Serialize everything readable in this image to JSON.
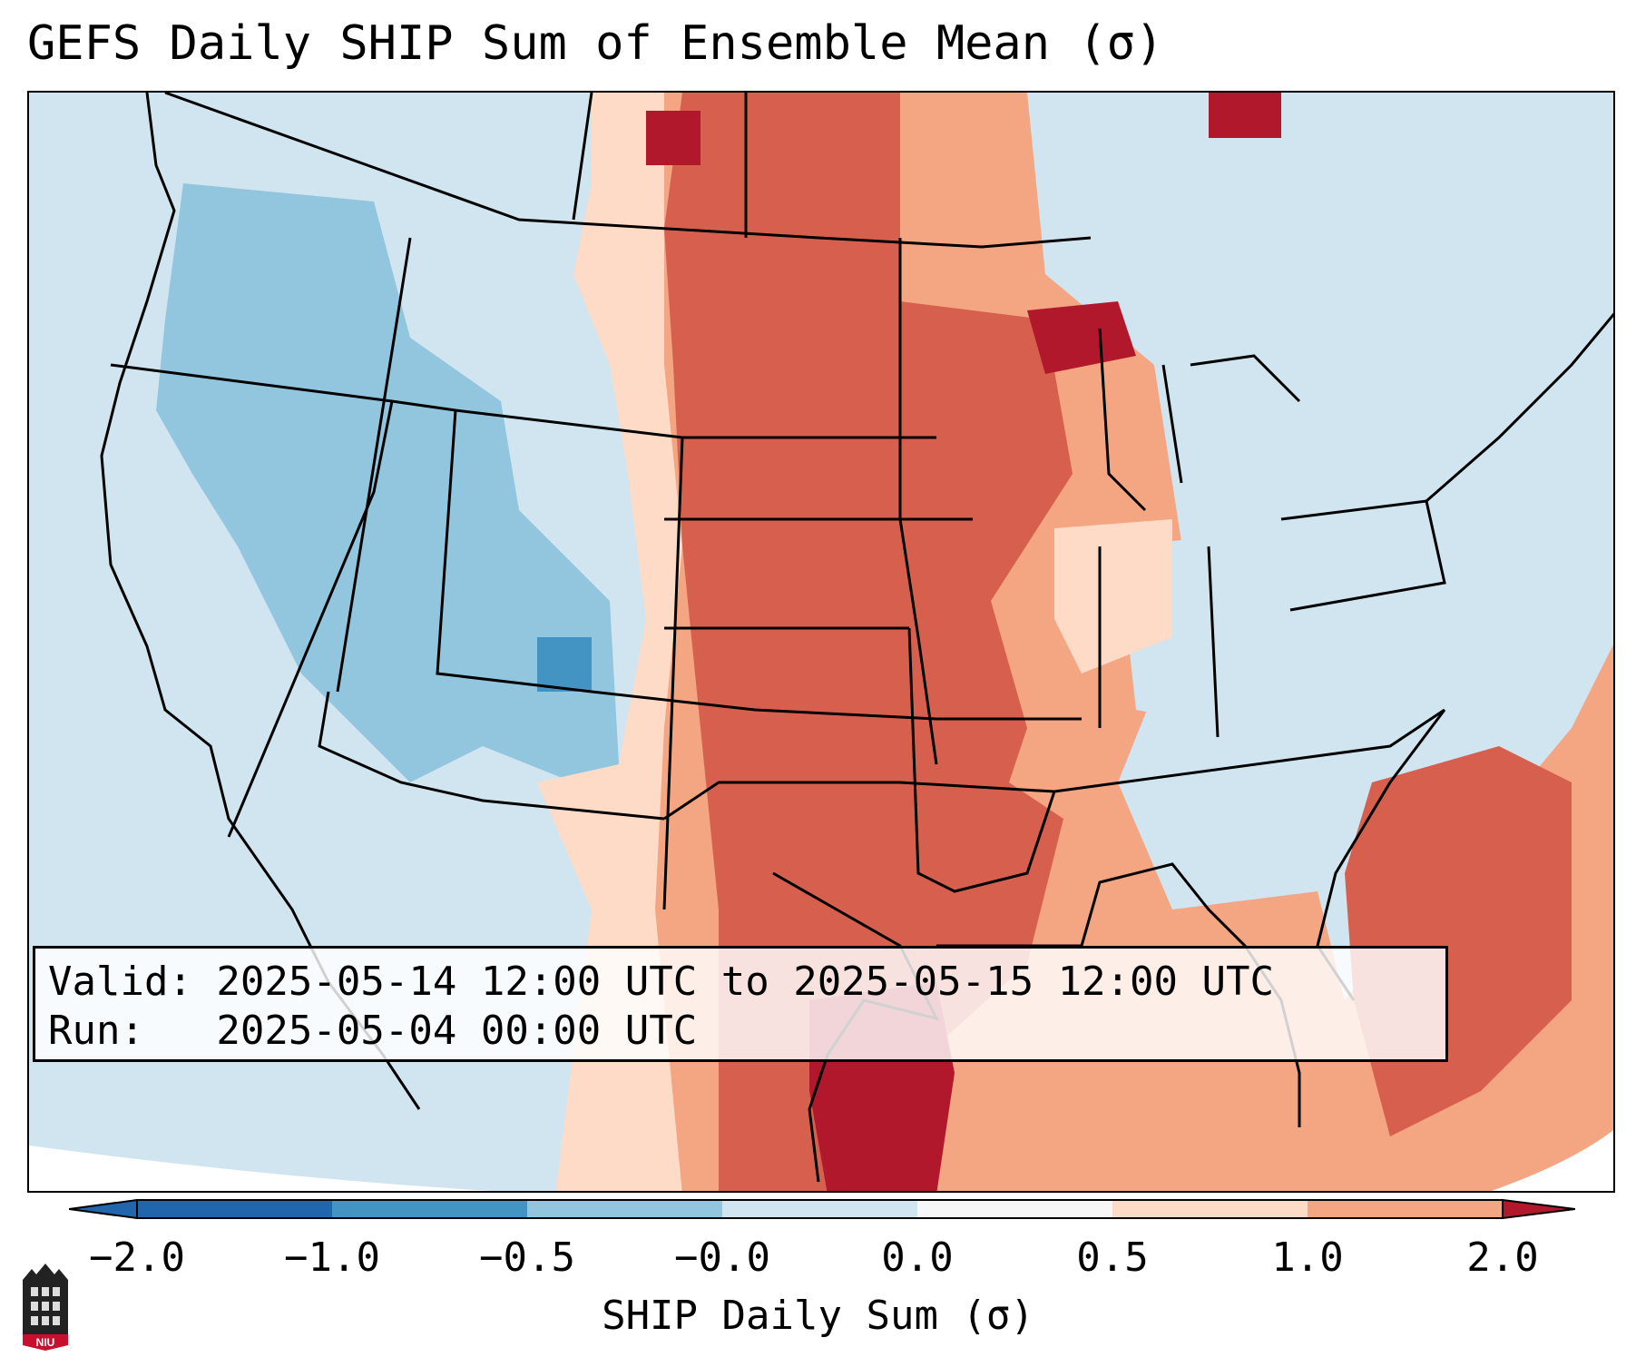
{
  "title": "GEFS Daily SHIP Sum of Ensemble Mean (σ)",
  "info": {
    "valid_line": "Valid: 2025-05-14 12:00 UTC to 2025-05-15 12:00 UTC",
    "run_line": "Run:   2025-05-04 00:00 UTC"
  },
  "colorbar": {
    "label": "SHIP Daily Sum (σ)",
    "ticks": [
      "−2.0",
      "−1.0",
      "−0.5",
      "−0.0",
      "0.0",
      "0.5",
      "1.0",
      "2.0"
    ],
    "colors": [
      "#2166ac",
      "#4393c3",
      "#92c5de",
      "#d1e5f0",
      "#f7f7f7",
      "#fddbc7",
      "#f4a582",
      "#d6604d",
      "#b2182b"
    ]
  },
  "logo": {
    "text": "NIU",
    "color": "#c8102e"
  }
}
